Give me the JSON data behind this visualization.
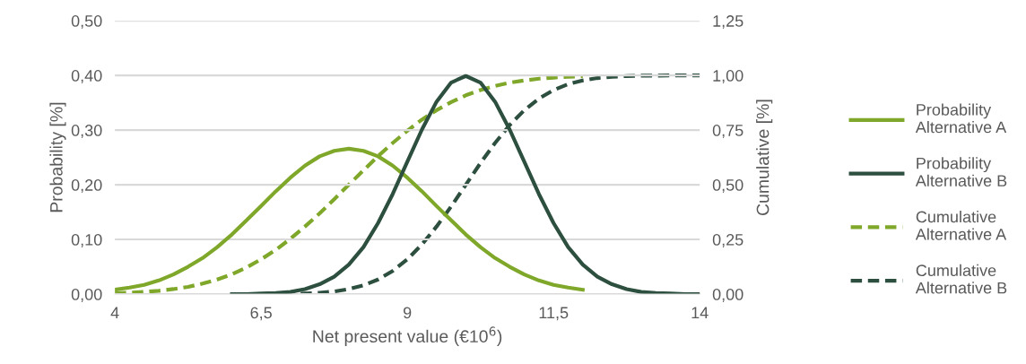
{
  "chart_data": {
    "type": "line",
    "xlabel": "Net present value (€10$^{6}$)",
    "ylabel": "Probability [%]",
    "y2label": "Cumulative [%]",
    "series": [
      {
        "name": "Probability Alternative A",
        "color": "#7fa82a",
        "line_style": "solid",
        "x": [
          4,
          4.25,
          4.5,
          4.75,
          5,
          5.25,
          5.5,
          5.75,
          6,
          6.25,
          6.5,
          6.75,
          7,
          7.25,
          7.5,
          7.75,
          8,
          8.25,
          8.5,
          8.75,
          9,
          9.25,
          9.5,
          9.75,
          10,
          10.25,
          10.5,
          10.75,
          11,
          11.25,
          11.5,
          11.75,
          12
        ],
        "values": [
          0.008,
          0.012,
          0.017,
          0.025,
          0.036,
          0.05,
          0.066,
          0.086,
          0.109,
          0.135,
          0.161,
          0.188,
          0.213,
          0.235,
          0.252,
          0.262,
          0.266,
          0.262,
          0.252,
          0.235,
          0.213,
          0.188,
          0.161,
          0.135,
          0.109,
          0.086,
          0.066,
          0.05,
          0.036,
          0.025,
          0.017,
          0.012,
          0.008
        ]
      },
      {
        "name": "Probability Alternative B",
        "color": "#2d4f3f",
        "line_style": "solid",
        "x": [
          6,
          6.25,
          6.5,
          6.75,
          7,
          7.25,
          7.5,
          7.75,
          8,
          8.25,
          8.5,
          8.75,
          9,
          9.25,
          9.5,
          9.75,
          10,
          10.25,
          10.5,
          10.75,
          11,
          11.25,
          11.5,
          11.75,
          12,
          12.25,
          12.5,
          12.75,
          13,
          13.25,
          13.5,
          13.75,
          14
        ],
        "values": [
          0.0,
          0.0,
          0.001,
          0.002,
          0.004,
          0.009,
          0.018,
          0.032,
          0.054,
          0.086,
          0.13,
          0.183,
          0.242,
          0.301,
          0.352,
          0.387,
          0.399,
          0.387,
          0.352,
          0.301,
          0.242,
          0.183,
          0.13,
          0.086,
          0.054,
          0.032,
          0.018,
          0.009,
          0.004,
          0.002,
          0.001,
          0.0,
          0.0
        ]
      },
      {
        "name": "Cumulative Alternative A",
        "color": "#7fa82a",
        "line_style": "dashed",
        "axis": "y2",
        "x": [
          4,
          4.25,
          4.5,
          4.75,
          5,
          5.25,
          5.5,
          5.75,
          6,
          6.25,
          6.5,
          6.75,
          7,
          7.25,
          7.5,
          7.75,
          8,
          8.25,
          8.5,
          8.75,
          9,
          9.25,
          9.5,
          9.75,
          10,
          10.25,
          10.5,
          10.75,
          11,
          11.25,
          11.5,
          11.75,
          12
        ],
        "values": [
          0.004,
          0.006,
          0.01,
          0.015,
          0.023,
          0.033,
          0.048,
          0.067,
          0.091,
          0.122,
          0.159,
          0.202,
          0.253,
          0.309,
          0.369,
          0.434,
          0.5,
          0.566,
          0.631,
          0.691,
          0.747,
          0.798,
          0.841,
          0.878,
          0.909,
          0.933,
          0.952,
          0.967,
          0.977,
          0.985,
          0.99,
          0.994,
          0.996
        ]
      },
      {
        "name": "Cumulative Alternative B",
        "color": "#2d4f3f",
        "line_style": "dashed",
        "axis": "y2",
        "x": [
          6,
          6.25,
          6.5,
          6.75,
          7,
          7.25,
          7.5,
          7.75,
          8,
          8.25,
          8.5,
          8.75,
          9,
          9.25,
          9.5,
          9.75,
          10,
          10.25,
          10.5,
          10.75,
          11,
          11.25,
          11.5,
          11.75,
          12,
          12.25,
          12.5,
          12.75,
          13,
          13.25,
          13.5,
          13.75,
          14
        ],
        "values": [
          0.0,
          0.0,
          0.0,
          0.001,
          0.001,
          0.003,
          0.006,
          0.012,
          0.023,
          0.04,
          0.067,
          0.106,
          0.159,
          0.227,
          0.309,
          0.401,
          0.5,
          0.599,
          0.691,
          0.773,
          0.841,
          0.894,
          0.933,
          0.96,
          0.977,
          0.988,
          0.994,
          0.997,
          0.999,
          0.999,
          1.0,
          1.0,
          1.0
        ]
      }
    ],
    "xlim": [
      4,
      14
    ],
    "xticks": [
      4,
      {
        "value": 6.5,
        "label": "6,5"
      },
      9,
      {
        "value": 11.5,
        "label": "11,5"
      },
      14
    ],
    "ylim": [
      0,
      0.5
    ],
    "yticks": [
      {
        "value": 0,
        "label": "0,00"
      },
      {
        "value": 0.1,
        "label": "0,10"
      },
      {
        "value": 0.2,
        "label": "0,20"
      },
      {
        "value": 0.3,
        "label": "0,30"
      },
      {
        "value": 0.4,
        "label": "0,40"
      },
      {
        "value": 0.5,
        "label": "0,50"
      }
    ],
    "y2lim": [
      0,
      1.25
    ],
    "y2ticks": [
      {
        "value": 0,
        "label": "0,00"
      },
      {
        "value": 0.25,
        "label": "0,25"
      },
      {
        "value": 0.5,
        "label": "0,50"
      },
      {
        "value": 0.75,
        "label": "0,75"
      },
      {
        "value": 1.0,
        "label": "1,00"
      },
      {
        "value": 1.25,
        "label": "1,25"
      }
    ],
    "grid": "y",
    "legend": "right",
    "marker": "none"
  }
}
